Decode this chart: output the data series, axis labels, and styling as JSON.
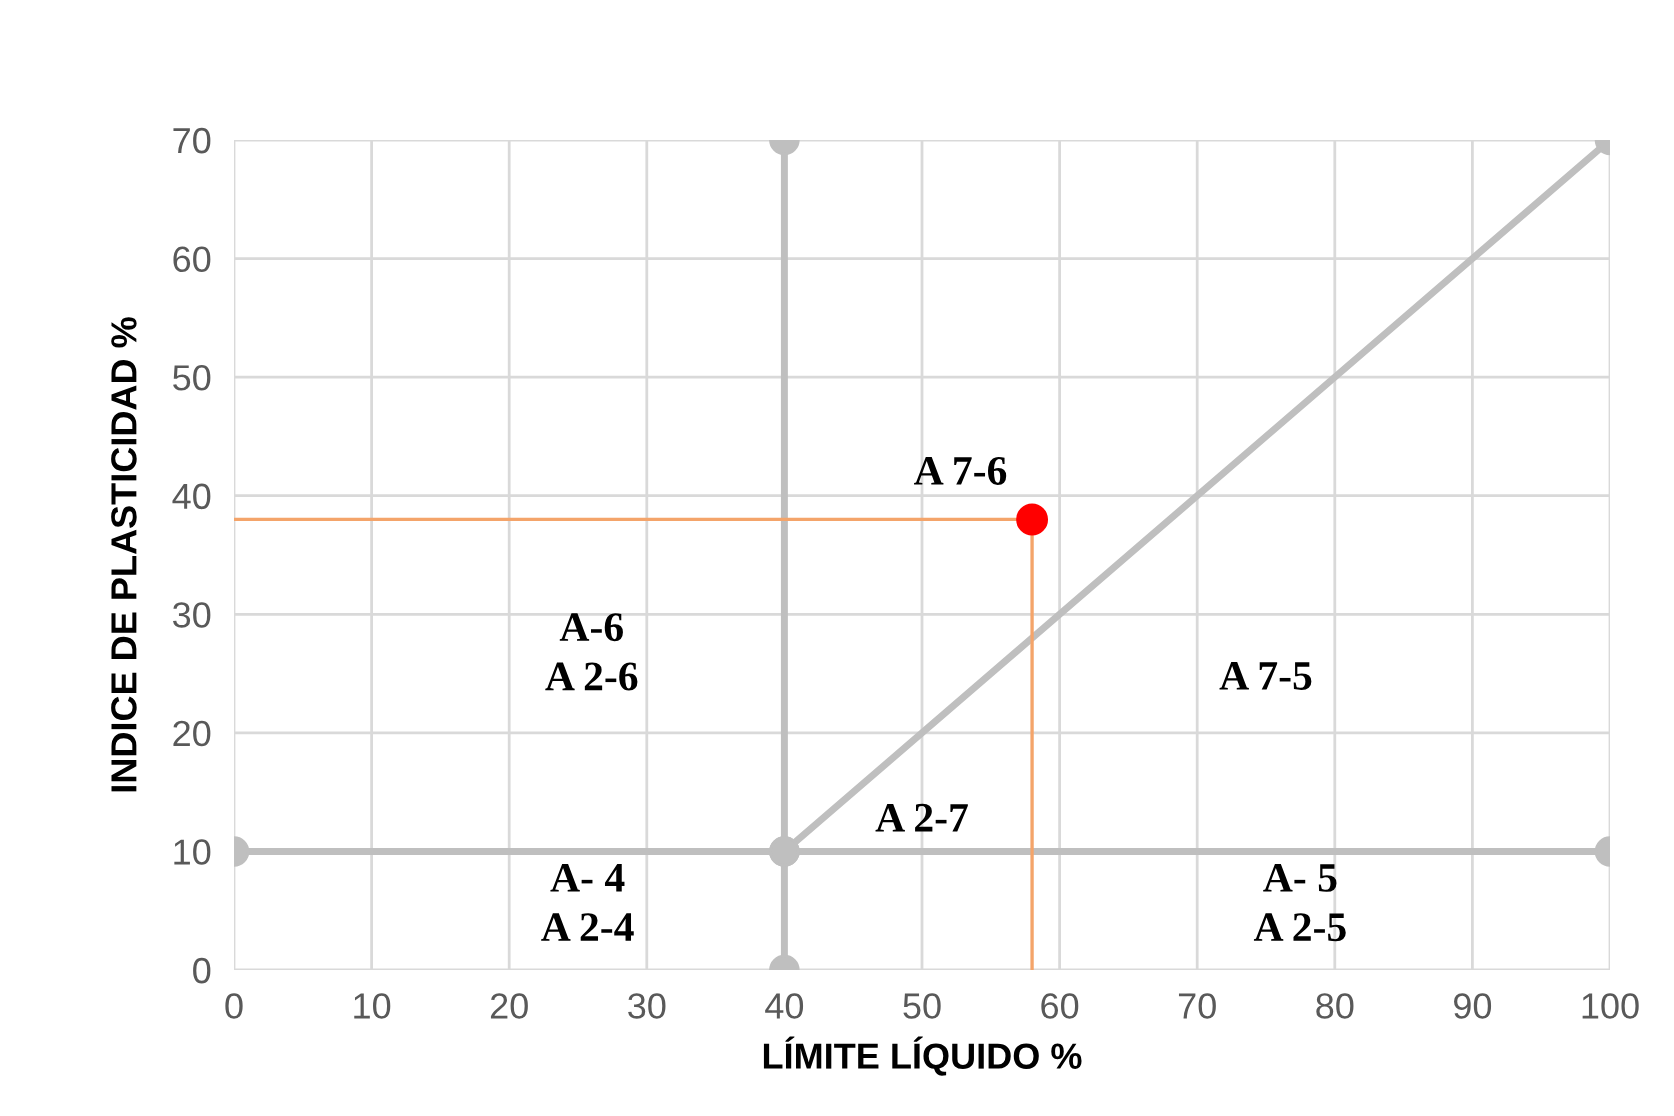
{
  "chart_data": {
    "type": "line",
    "xlabel": "LÍMITE LÍQUIDO %",
    "ylabel": "INDICE DE PLASTICIDAD %",
    "xlim": [
      0,
      100
    ],
    "ylim": [
      0,
      70
    ],
    "xticks": [
      0,
      10,
      20,
      30,
      40,
      50,
      60,
      70,
      80,
      90,
      100
    ],
    "yticks": [
      0,
      10,
      20,
      30,
      40,
      50,
      60,
      70
    ],
    "grid": true,
    "series": [
      {
        "color": "#bfbfbf",
        "x": [
          40,
          40
        ],
        "values": [
          0,
          70
        ],
        "marker": "circle"
      },
      {
        "color": "#bfbfbf",
        "x": [
          0,
          40,
          100
        ],
        "values": [
          10,
          10,
          10
        ],
        "marker": "circle"
      },
      {
        "color": "#bfbfbf",
        "x": [
          40,
          100
        ],
        "values": [
          10,
          70
        ],
        "marker": "circle"
      },
      {
        "color": "#f4a46a",
        "x": [
          0,
          58,
          58
        ],
        "values": [
          38,
          38,
          0
        ]
      },
      {
        "type": "scatter",
        "color": "#ff0000",
        "x": [
          58
        ],
        "values": [
          38
        ],
        "marker": "circle"
      }
    ],
    "annotations": [
      "A 7-6",
      "A-6\nA 2-6",
      "A 7-5",
      "A 2-7",
      "A- 4\nA 2-4",
      "A- 5\nA 2-5"
    ]
  }
}
